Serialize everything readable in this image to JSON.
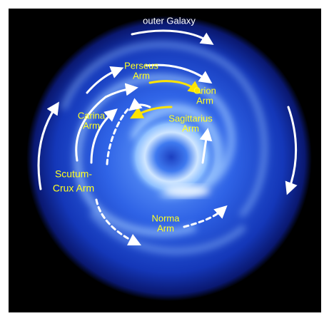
{
  "labels": [
    {
      "lines": [
        "outer Galaxy"
      ]
    },
    {
      "lines": [
        "Perseus",
        "Arm"
      ]
    },
    {
      "lines": [
        "Orion",
        "Arm"
      ]
    },
    {
      "lines": [
        "Carina",
        "Arm"
      ]
    },
    {
      "lines": [
        "Sagittarius",
        "Arm"
      ]
    },
    {
      "lines": [
        "Scutum-",
        "Crux Arm"
      ]
    },
    {
      "lines": [
        "Norma",
        "Arm"
      ]
    }
  ]
}
